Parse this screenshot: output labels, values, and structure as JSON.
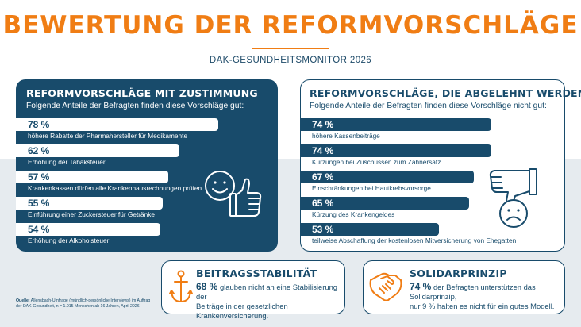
{
  "title": "BEWERTUNG DER REFORMVORSCHLÄGE",
  "subtitle": "DAK-GESUNDHEITSMONITOR 2026",
  "approved": {
    "title": "REFORMVORSCHLÄGE MIT ZUSTIMMUNG",
    "subtitle": "Folgende Anteile der Befragten finden diese Vorschläge gut:",
    "items": [
      {
        "value": "78 %",
        "pct": 78,
        "label": "höhere Rabatte der Pharmahersteller für Medikamente"
      },
      {
        "value": "62 %",
        "pct": 62,
        "label": "Erhöhung der Tabaksteuer"
      },
      {
        "value": "57 %",
        "pct": 57,
        "label": "Krankenkassen dürfen alle Krankenhausrechnungen prüfen"
      },
      {
        "value": "55 %",
        "pct": 55,
        "label": "Einführung einer Zuckersteuer für Getränke"
      },
      {
        "value": "54 %",
        "pct": 54,
        "label": "Erhöhung der Alkoholsteuer"
      }
    ]
  },
  "rejected": {
    "title": "REFORMVORSCHLÄGE, DIE ABGELEHNT WERDEN",
    "subtitle": "Folgende Anteile der Befragten finden diese Vorschläge nicht gut:",
    "items": [
      {
        "value": "74 %",
        "pct": 74,
        "label": "höhere Kassenbeiträge"
      },
      {
        "value": "74 %",
        "pct": 74,
        "label": "Kürzungen bei Zuschüssen zum Zahnersatz"
      },
      {
        "value": "67 %",
        "pct": 67,
        "label": "Einschränkungen bei Hautkrebsvorsorge"
      },
      {
        "value": "65 %",
        "pct": 65,
        "label": "Kürzung des Krankengeldes"
      },
      {
        "value": "53 %",
        "pct": 53,
        "label": "teilweise Abschaffung der kostenlosen Mitversicherung von Ehegatten"
      }
    ]
  },
  "beitrag": {
    "title": "BEITRAGSSTABILITÄT",
    "value": "68 %",
    "text_1": "glauben nicht an eine Stabilisierung der",
    "text_2": "Beiträge in der gesetzlichen Krankenversicherung."
  },
  "solidar": {
    "title": "SOLIDARPRINZIP",
    "value": "74 %",
    "text_1": "der Befragten unterstützen das Solidarprinzip,",
    "text_2": "nur 9 % halten es nicht für ein gutes Modell."
  },
  "source": {
    "label": "Quelle:",
    "text_1": "Allensbach-Umfrage (mündlich-persönliche Interviews) im Auftrag",
    "text_2": "der DAK-Gesundheit, n = 1.015 Menschen ab 16 Jahren, April 2026"
  },
  "icons": [
    "thumbs-up-smiley-icon",
    "thumbs-down-sad-icon",
    "anchor-icon",
    "handshake-icon"
  ],
  "colors": {
    "accent": "#f07d14",
    "navy": "#184b6b",
    "background_band": "#e6ebef"
  }
}
